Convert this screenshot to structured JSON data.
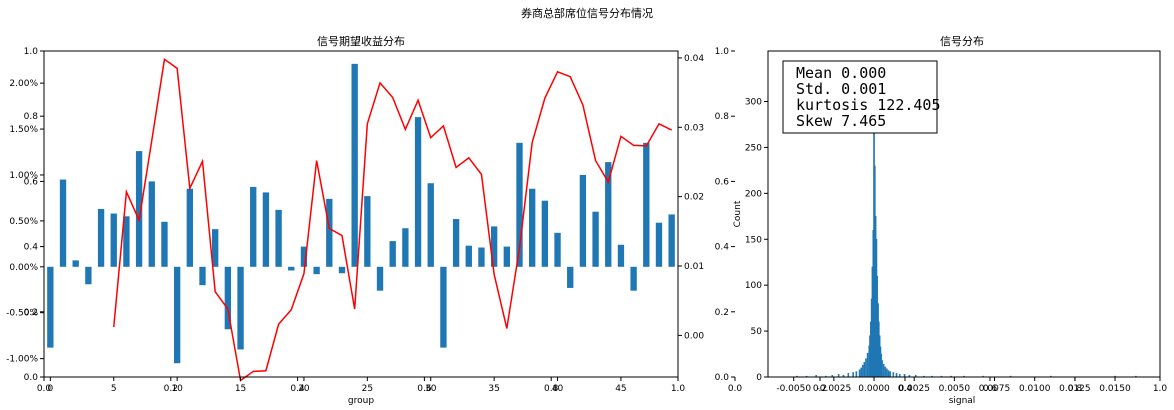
{
  "suptitle": "券商总部席位信号分布情况",
  "chart_data": [
    {
      "type": "bar",
      "title": "信号期望收益分布",
      "xlabel": "group",
      "categories": [
        0,
        1,
        2,
        3,
        4,
        5,
        6,
        7,
        8,
        9,
        10,
        11,
        12,
        13,
        14,
        15,
        16,
        17,
        18,
        19,
        20,
        21,
        22,
        23,
        24,
        25,
        26,
        27,
        28,
        29,
        30,
        31,
        32,
        33,
        34,
        35,
        36,
        37,
        38,
        39,
        40,
        41,
        42,
        43,
        44,
        45,
        46,
        47,
        48,
        49
      ],
      "x_ticks": [
        0,
        5,
        10,
        15,
        20,
        25,
        30,
        35,
        40,
        45
      ],
      "y_left_ticks": [
        "-1.00%",
        "-0.50%",
        "0.00%",
        "0.50%",
        "1.00%",
        "1.50%",
        "2.00%"
      ],
      "y_left_lim": [
        -1.2,
        2.35
      ],
      "y_right_ticks": [
        "0.00",
        "0.01",
        "0.02",
        "0.03",
        "0.04"
      ],
      "y_right_lim": [
        -0.006,
        0.041
      ],
      "series": [
        {
          "kind": "bar",
          "axis": "left",
          "color": "#1f77b4",
          "values": [
            -0.88,
            0.95,
            0.07,
            -0.19,
            0.63,
            0.58,
            0.55,
            1.26,
            0.93,
            0.49,
            -1.05,
            0.85,
            -0.2,
            0.41,
            -0.68,
            -0.9,
            0.87,
            0.81,
            0.62,
            -0.04,
            0.22,
            -0.08,
            0.74,
            -0.07,
            2.21,
            0.77,
            -0.26,
            0.28,
            0.42,
            1.63,
            0.91,
            -0.88,
            0.52,
            0.23,
            0.21,
            0.44,
            0.22,
            1.35,
            0.85,
            0.72,
            0.37,
            -0.23,
            1.0,
            0.6,
            1.14,
            0.24,
            -0.26,
            1.35,
            0.48,
            0.57
          ]
        },
        {
          "kind": "line",
          "axis": "right",
          "color": "#ff0000",
          "x": [
            5,
            6,
            7,
            8,
            9,
            10,
            11,
            12,
            13,
            14,
            15,
            16,
            17,
            18,
            19,
            20,
            21,
            22,
            23,
            24,
            25,
            26,
            27,
            28,
            29,
            30,
            31,
            32,
            33,
            34,
            35,
            36,
            37,
            38,
            39,
            40,
            41,
            42,
            43,
            44,
            45,
            46,
            47,
            48,
            49
          ],
          "values": [
            0.0012,
            0.0207,
            0.0166,
            0.0281,
            0.0398,
            0.0385,
            0.0212,
            0.0251,
            0.0063,
            0.0038,
            -0.0065,
            -0.0052,
            -0.0051,
            0.0016,
            0.0037,
            0.0089,
            0.0252,
            0.0154,
            0.0144,
            0.0038,
            0.0305,
            0.0364,
            0.0343,
            0.0297,
            0.0339,
            0.0285,
            0.0302,
            0.0242,
            0.0256,
            0.0232,
            0.0088,
            0.001,
            0.0126,
            0.0278,
            0.0342,
            0.038,
            0.0373,
            0.0332,
            0.0252,
            0.0221,
            0.0287,
            0.0274,
            0.0273,
            0.0305,
            0.0296
          ]
        }
      ],
      "overlay_ticks": {
        "y": [
          "0.0",
          "0.2",
          "0.4",
          "0.6",
          "0.8",
          "1.0"
        ],
        "x": [
          "0.0",
          "0.2",
          "0.4",
          "0.6",
          "0.8",
          "1.0"
        ]
      }
    },
    {
      "type": "histogram",
      "title": "信号分布",
      "xlabel": "signal",
      "ylabel": "Count",
      "color": "#1f77b4",
      "x_ticks": [
        "-0.0050",
        "-0.0025",
        "0.0000",
        "0.0025",
        "0.0050",
        "0.0075",
        "0.0100",
        "0.0125",
        "0.0150"
      ],
      "x_lim": [
        -0.0066,
        0.0178
      ],
      "y_ticks": [
        "0",
        "50",
        "100",
        "150",
        "200",
        "250",
        "300"
      ],
      "y_lim": [
        0,
        355
      ],
      "overlay_ticks": {
        "y": [
          "0.0",
          "0.2",
          "0.4",
          "0.6",
          "0.8",
          "1.0"
        ],
        "x": [
          "0.0",
          "0.2",
          "0.4",
          "0.6",
          "0.8",
          "1.0"
        ]
      },
      "bins": [
        {
          "x": -0.0048,
          "c": 1
        },
        {
          "x": -0.0042,
          "c": 1
        },
        {
          "x": -0.0036,
          "c": 2
        },
        {
          "x": -0.003,
          "c": 1
        },
        {
          "x": -0.0026,
          "c": 2
        },
        {
          "x": -0.0022,
          "c": 3
        },
        {
          "x": -0.0019,
          "c": 2
        },
        {
          "x": -0.0016,
          "c": 4
        },
        {
          "x": -0.0013,
          "c": 5
        },
        {
          "x": -0.0011,
          "c": 6
        },
        {
          "x": -0.0009,
          "c": 8
        },
        {
          "x": -0.0008,
          "c": 10
        },
        {
          "x": -0.0007,
          "c": 13
        },
        {
          "x": -0.0006,
          "c": 16
        },
        {
          "x": -0.0005,
          "c": 20
        },
        {
          "x": -0.0004,
          "c": 26
        },
        {
          "x": -0.0003,
          "c": 34
        },
        {
          "x": -0.00025,
          "c": 45
        },
        {
          "x": -0.0002,
          "c": 60
        },
        {
          "x": -0.00015,
          "c": 85
        },
        {
          "x": -0.0001,
          "c": 120
        },
        {
          "x": -5e-05,
          "c": 160
        },
        {
          "x": 0.0,
          "c": 310
        },
        {
          "x": 5e-05,
          "c": 230
        },
        {
          "x": 0.0001,
          "c": 175
        },
        {
          "x": 0.00015,
          "c": 150
        },
        {
          "x": 0.0002,
          "c": 110
        },
        {
          "x": 0.00025,
          "c": 80
        },
        {
          "x": 0.0003,
          "c": 60
        },
        {
          "x": 0.00035,
          "c": 45
        },
        {
          "x": 0.0004,
          "c": 33
        },
        {
          "x": 0.00045,
          "c": 25
        },
        {
          "x": 0.0005,
          "c": 18
        },
        {
          "x": 0.0006,
          "c": 14
        },
        {
          "x": 0.0007,
          "c": 11
        },
        {
          "x": 0.0008,
          "c": 9
        },
        {
          "x": 0.0009,
          "c": 7
        },
        {
          "x": 0.001,
          "c": 6
        },
        {
          "x": 0.0012,
          "c": 5
        },
        {
          "x": 0.0014,
          "c": 4
        },
        {
          "x": 0.0016,
          "c": 3
        },
        {
          "x": 0.0019,
          "c": 3
        },
        {
          "x": 0.0022,
          "c": 2
        },
        {
          "x": 0.0026,
          "c": 2
        },
        {
          "x": 0.0031,
          "c": 1
        },
        {
          "x": 0.0036,
          "c": 1
        },
        {
          "x": 0.0042,
          "c": 1
        },
        {
          "x": 0.0048,
          "c": 1
        },
        {
          "x": 0.0056,
          "c": 1
        },
        {
          "x": 0.0068,
          "c": 1
        },
        {
          "x": 0.0085,
          "c": 1
        },
        {
          "x": 0.011,
          "c": 1
        },
        {
          "x": 0.015,
          "c": 1
        },
        {
          "x": 0.0163,
          "c": 1
        }
      ],
      "stats": [
        "Mean 0.000",
        "Std. 0.001",
        "kurtosis 122.405",
        "Skew 7.465"
      ]
    }
  ]
}
